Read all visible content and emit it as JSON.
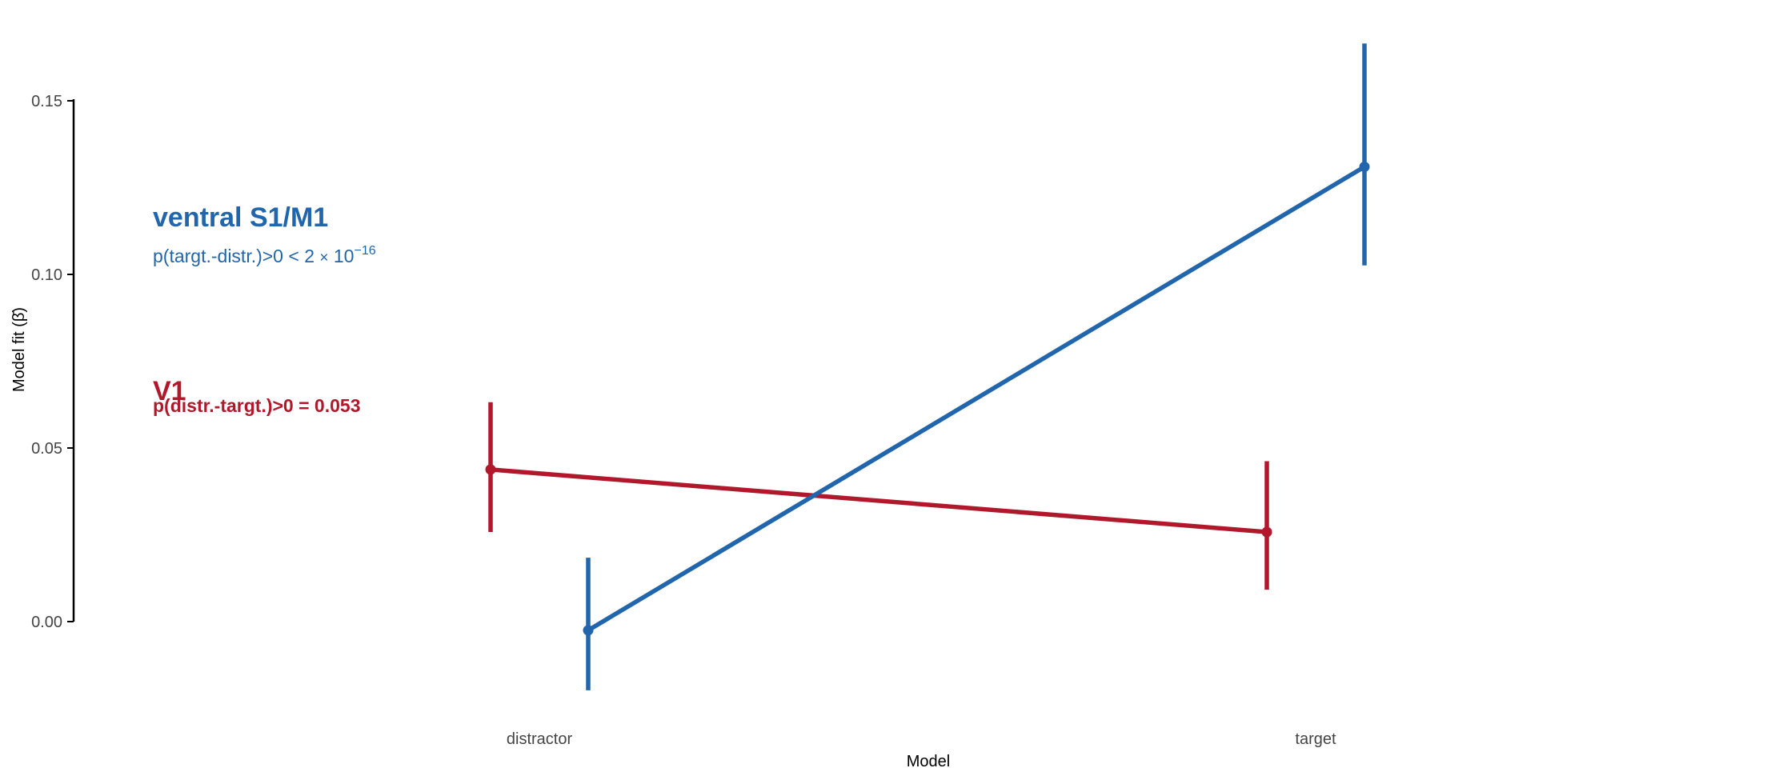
{
  "chart_data": {
    "type": "line",
    "xlabel": "Model",
    "ylabel": "Model fit (β̄)",
    "categories": [
      "distractor",
      "target"
    ],
    "ylim": [
      -0.02,
      0.167
    ],
    "yticks": [
      "0.00",
      "0.05",
      "0.10",
      "0.15"
    ],
    "ytick_values": [
      0,
      0.05,
      0.1,
      0.15
    ],
    "grid": false,
    "series": [
      {
        "name": "V1",
        "color": "#b2182b",
        "values": [
          0.0438,
          0.0258
        ],
        "lower": [
          0.0258,
          0.0092
        ],
        "upper": [
          0.0632,
          0.0462
        ],
        "dodge": -1
      },
      {
        "name": "ventral S1/M1",
        "color": "#2166ac",
        "values": [
          -0.0025,
          0.131
        ],
        "lower": [
          -0.0198,
          0.1026
        ],
        "upper": [
          0.0184,
          0.1665
        ],
        "dodge": 1
      }
    ],
    "annotations": [
      {
        "title": "ventral S1/M1",
        "p_prefix": "p(targt.-distr.)>0 < 2",
        "p_times": "×",
        "p_base": "10",
        "p_exp": "−16",
        "color": "#2166ac"
      },
      {
        "title": "V1",
        "p_text": "p(distr.-targt.)>0 = 0.053",
        "color": "#b2182b"
      }
    ]
  }
}
